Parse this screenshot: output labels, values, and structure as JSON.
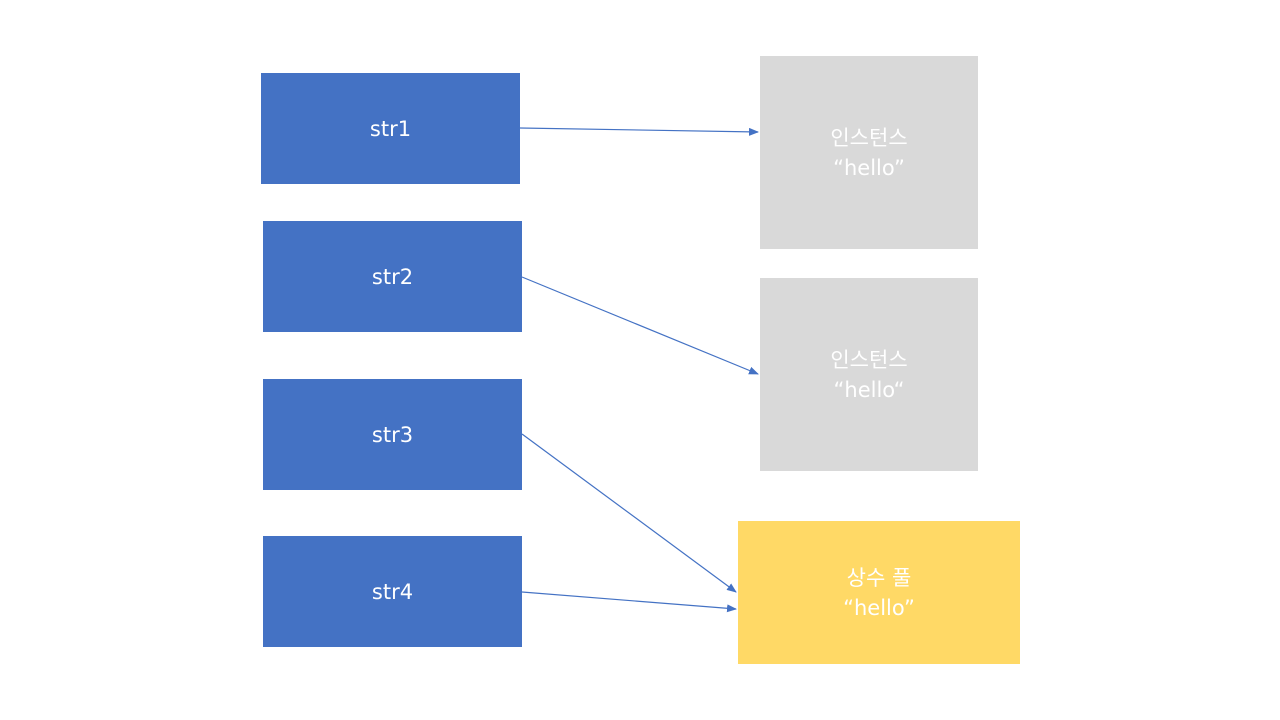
{
  "variables": [
    {
      "label": "str1"
    },
    {
      "label": "str2"
    },
    {
      "label": "str3"
    },
    {
      "label": "str4"
    }
  ],
  "instances": [
    {
      "title": "인스턴스",
      "value": "“hello”"
    },
    {
      "title": "인스턴스",
      "value": "“hello“"
    }
  ],
  "constant_pool": {
    "title": "상수 풀",
    "value": "“hello”"
  },
  "colors": {
    "variable_fill": "#4472c4",
    "instance_fill": "#d9d9d9",
    "pool_fill": "#ffd966",
    "arrow": "#4472c4",
    "text": "#ffffff"
  },
  "references": [
    {
      "from": "str1",
      "to": "instance-1"
    },
    {
      "from": "str2",
      "to": "instance-2"
    },
    {
      "from": "str3",
      "to": "constant-pool"
    },
    {
      "from": "str4",
      "to": "constant-pool"
    }
  ]
}
